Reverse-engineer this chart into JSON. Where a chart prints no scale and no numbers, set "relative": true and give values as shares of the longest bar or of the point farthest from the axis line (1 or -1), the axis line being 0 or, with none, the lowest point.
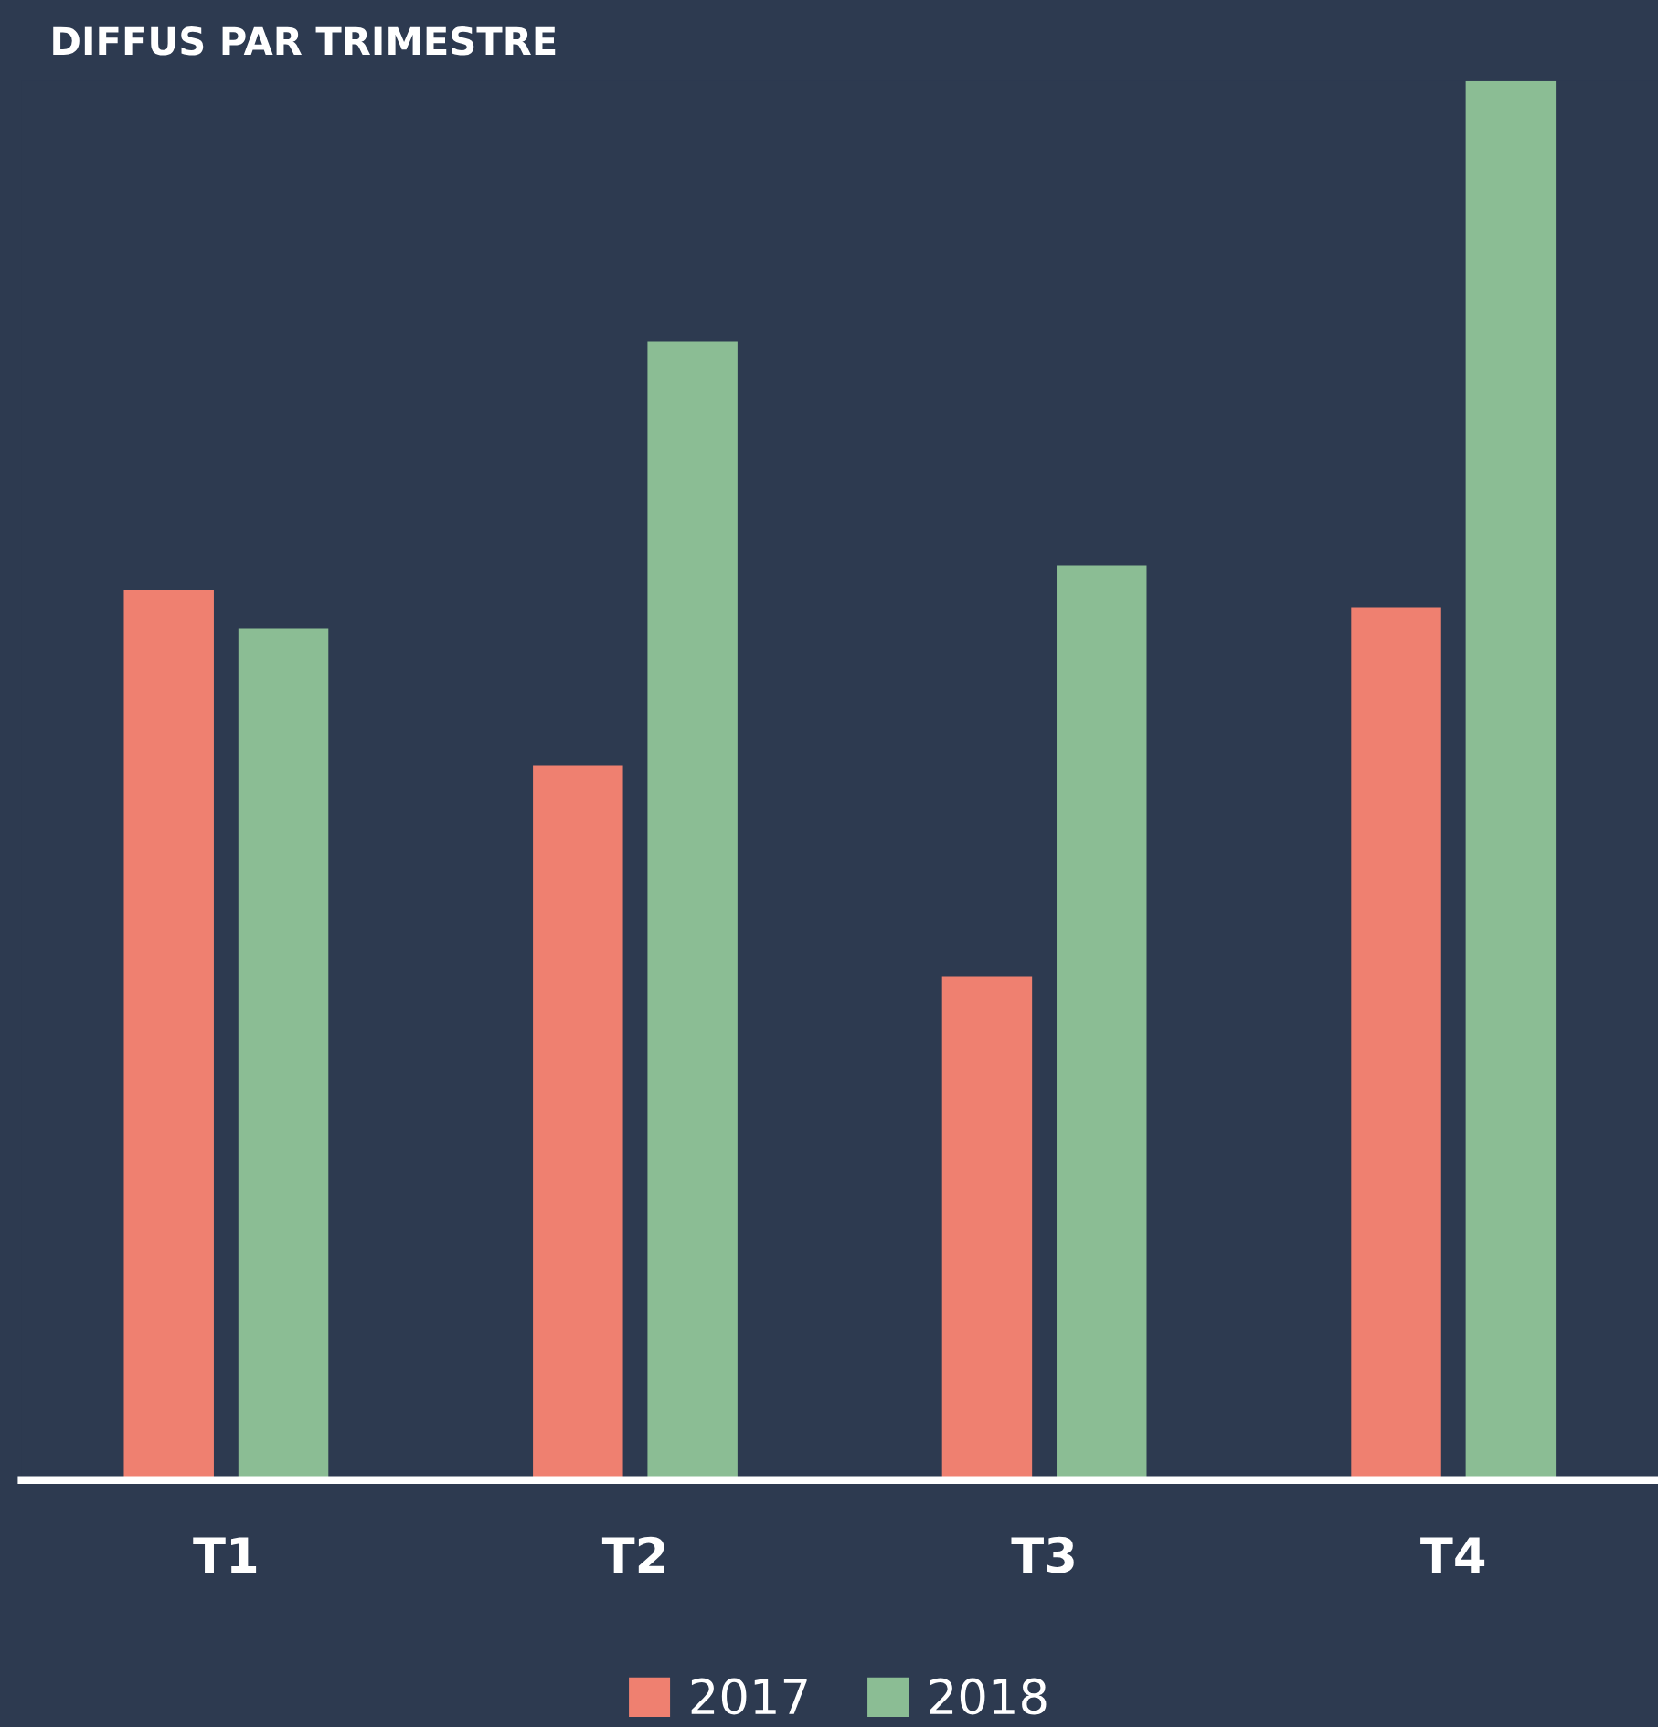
{
  "chart_data": {
    "type": "bar",
    "title": "DIFFUS PAR TRIMESTRE",
    "relative": true,
    "categories": [
      "T1",
      "T2",
      "T3",
      "T4"
    ],
    "series": [
      {
        "name": "2017",
        "color": "#ef8070",
        "values": [
          0.636,
          0.511,
          0.36,
          0.624
        ]
      },
      {
        "name": "2018",
        "color": "#8bbd94",
        "values": [
          0.609,
          0.814,
          0.654,
          1.0
        ]
      }
    ],
    "legend": "bottom",
    "grid": false
  }
}
